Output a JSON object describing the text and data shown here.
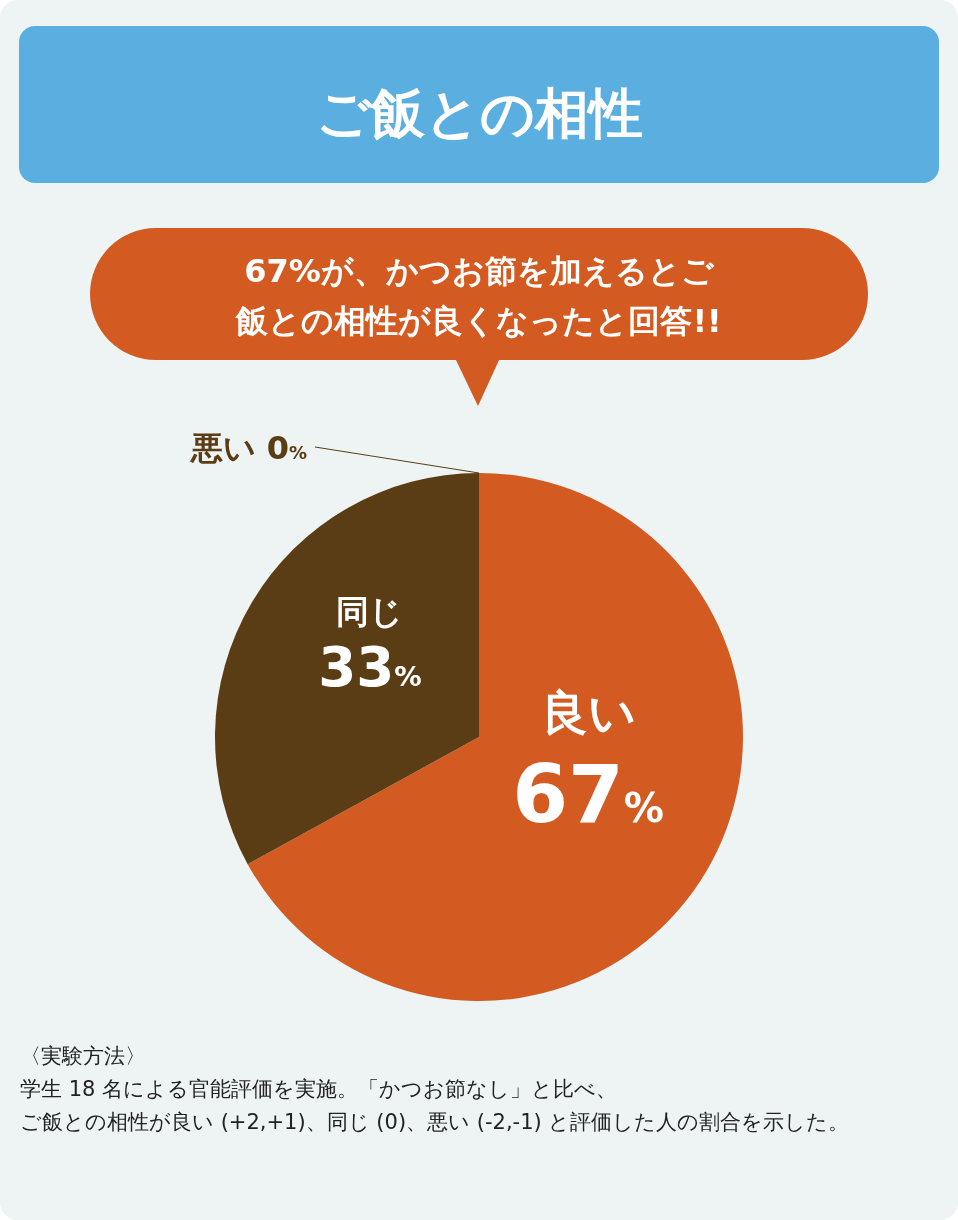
{
  "chart_data": {
    "type": "pie",
    "title": "ご飯との相性",
    "subtitle": "67%が、かつお節を加えるとご飯との相性が良くなったと回答!!",
    "categories": [
      "良い",
      "同じ",
      "悪い"
    ],
    "values": [
      67,
      33,
      0
    ],
    "value_labels": [
      "67%",
      "33%",
      "0%"
    ],
    "colors": [
      "#d35a20",
      "#5a3d15",
      "#5a3d15"
    ],
    "annotations": [
      "〈実験方法〉",
      "学生 18 名による官能評価を実施。「かつお節なし」と比べ、",
      "ご飯との相性が良い (+2,+1)、同じ (0)、悪い (-2,-1) と評価した人の割合を示した。"
    ]
  }
}
